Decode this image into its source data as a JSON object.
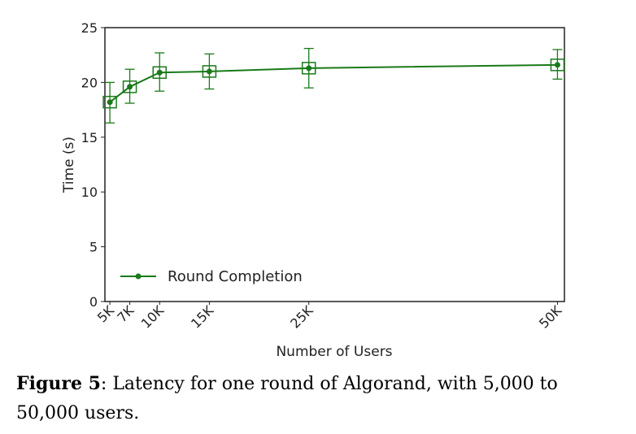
{
  "chart_data": {
    "type": "line",
    "categories": [
      "5K",
      "7K",
      "10K",
      "15K",
      "25K",
      "50K"
    ],
    "x": [
      5000,
      7000,
      10000,
      15000,
      25000,
      50000
    ],
    "series": [
      {
        "name": "Round Completion",
        "values": [
          18.2,
          19.6,
          20.9,
          21.0,
          21.3,
          21.6
        ],
        "err_low": [
          16.3,
          18.1,
          19.2,
          19.4,
          19.5,
          20.3
        ],
        "err_high": [
          20.0,
          21.2,
          22.7,
          22.6,
          23.1,
          23.0
        ],
        "color": "#1a7a1a"
      }
    ],
    "xlabel": "Number of Users",
    "ylabel": "Time (s)",
    "ylim": [
      0,
      25
    ],
    "xlim": [
      4500,
      50700
    ],
    "yticks": [
      0,
      5,
      10,
      15,
      20,
      25
    ],
    "xtick_labels": [
      "5K",
      "7K",
      "10K",
      "15K",
      "25K",
      "50K"
    ],
    "grid": false,
    "legend": "lower-left"
  },
  "caption": {
    "label": "Figure 5",
    "text": ": Latency for one round of Algorand, with 5,000 to 50,000 users."
  }
}
